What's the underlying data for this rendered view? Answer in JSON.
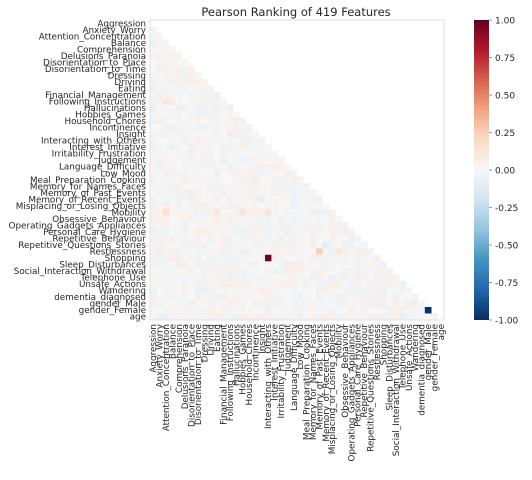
{
  "chart_data": {
    "type": "heatmap",
    "title": "Pearson Ranking of 419 Features",
    "features": [
      "Aggression",
      "Anxiety_Worry",
      "Attention_Concentration",
      "Balance",
      "Comprehension",
      "Delusions_Paranoia",
      "Disorientation_to_Place",
      "Disorientation_to_Time",
      "Dressing",
      "Driving",
      "Eating",
      "Financial_Management",
      "Following_Instructions",
      "Hallucinations",
      "Hobbies_Games",
      "Household_Chores",
      "Incontinence",
      "Insight",
      "Interacting_with_Others",
      "Interest_Initiative",
      "Irritability_Frustration",
      "Judgement",
      "Language_Difficulty",
      "Low_Mood",
      "Meal_Preparation_Cooking",
      "Memory_for_Names_Faces",
      "Memory_of_Past_Events",
      "Memory_of_Recent_Events",
      "Misplacing_or_Losing_Objects",
      "Mobility",
      "Obsessive_Behaviour",
      "Operating_Gadgets_Appliances",
      "Personal_Care_Hygiene",
      "Repetitive_Behaviour",
      "Repetitive_Questions_Stories",
      "Restlessness",
      "Shopping",
      "Sleep_Disturbances",
      "Social_Interaction_Withdrawal",
      "Telephone_Use",
      "Unsafe_Actions",
      "Wandering",
      "dementia_diagnosed",
      "gender_Male",
      "gender_Female",
      "age"
    ],
    "mask": "upper-triangle",
    "colormap": "RdBu_r",
    "vmin": -1.0,
    "vmax": 1.0,
    "colorbar_ticks": [
      "1.00",
      "0.75",
      "0.50",
      "0.25",
      "0.00",
      "-0.25",
      "-0.50",
      "-0.75",
      "-1.00"
    ],
    "values_note": "lower-triangle correlations near 0",
    "highlighted": [
      {
        "row": "Shopping",
        "col": "Interacting_with_Others",
        "value": 0.98
      },
      {
        "row": "gender_Female",
        "col": "gender_Male",
        "value": -0.98
      },
      {
        "row": "Restlessness",
        "col": "Memory_of_Past_Events",
        "value": 0.25
      },
      {
        "row": "Mobility",
        "col": "Attention_Concentration",
        "value": 0.16
      },
      {
        "row": "Mobility",
        "col": "Interacting_with_Others",
        "value": 0.15
      },
      {
        "row": "Mobility",
        "col": "Hobbies_Games",
        "value": 0.13
      },
      {
        "row": "Mobility",
        "col": "Eating",
        "value": 0.12
      },
      {
        "row": "Restlessness",
        "col": "Mobility",
        "value": 0.12
      },
      {
        "row": "Following_Instructions",
        "col": "Attention_Concentration",
        "value": 0.12
      },
      {
        "row": "Insight",
        "col": "Following_Instructions",
        "value": 0.1
      },
      {
        "row": "Memory_of_Recent_Events",
        "col": "Insight",
        "value": -0.1
      },
      {
        "row": "Low_Mood",
        "col": "Eating",
        "value": -0.08
      },
      {
        "row": "Repetitive_Questions_Stories",
        "col": "Memory_of_Recent_Events",
        "value": -0.1
      },
      {
        "row": "Sleep_Disturbances",
        "col": "Judgement",
        "value": 0.09
      },
      {
        "row": "Unsafe_Actions",
        "col": "Misplacing_or_Losing_Objects",
        "value": 0.08
      }
    ]
  }
}
